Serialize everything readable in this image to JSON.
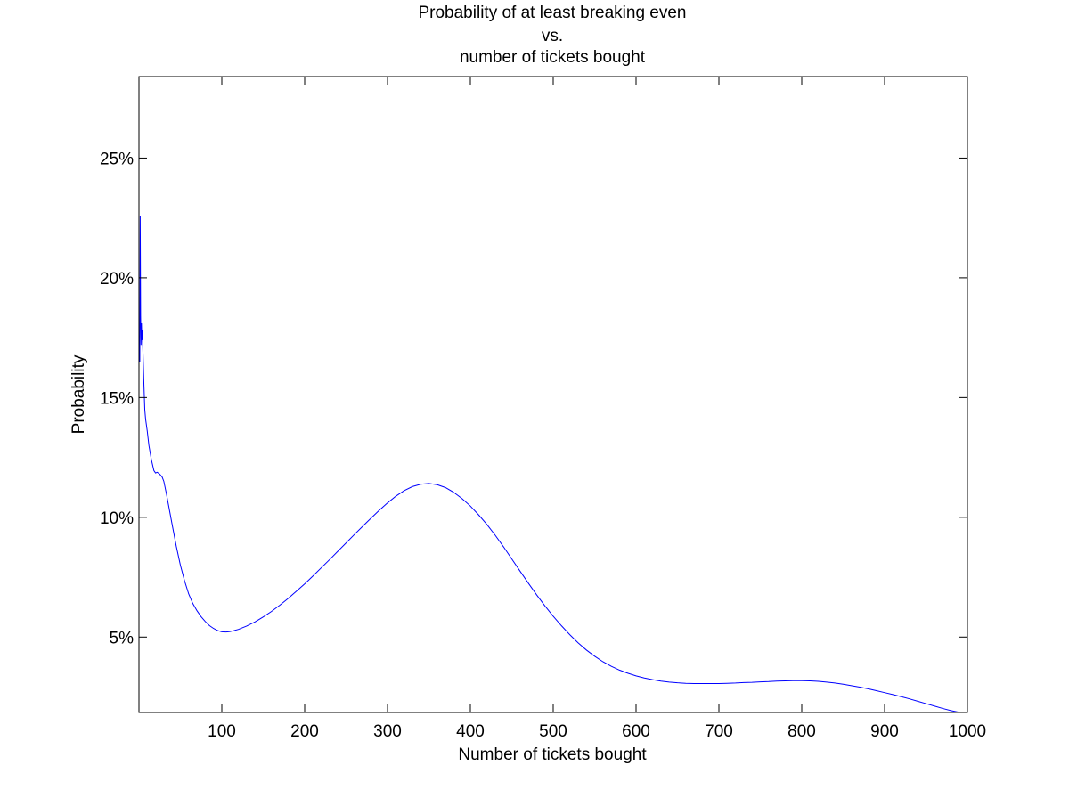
{
  "chart_data": {
    "type": "line",
    "title_lines": [
      "Probability of at least breaking even",
      "vs.",
      "number of tickets bought"
    ],
    "xlabel": "Number of tickets bought",
    "ylabel": "Probability",
    "xlim": [
      0,
      1000
    ],
    "ylim": [
      0.0185,
      0.284
    ],
    "xticks": [
      100,
      200,
      300,
      400,
      500,
      600,
      700,
      800,
      900,
      1000
    ],
    "xtick_labels": [
      "100",
      "200",
      "300",
      "400",
      "500",
      "600",
      "700",
      "800",
      "900",
      "1000"
    ],
    "yticks": [
      0.05,
      0.1,
      0.15,
      0.2,
      0.25
    ],
    "ytick_labels": [
      "5%",
      "10%",
      "15%",
      "20%",
      "25%"
    ],
    "grid": false,
    "line_color": "#0000ff",
    "series": [
      {
        "x": [
          1,
          1.5,
          2,
          2.5,
          3,
          3.5,
          4,
          5,
          6,
          7,
          8,
          10,
          12,
          15,
          18,
          20,
          22,
          25,
          28,
          30,
          33,
          36,
          40,
          45,
          50,
          55,
          60,
          65,
          70,
          75,
          80,
          85,
          90,
          95,
          100,
          105,
          110,
          115,
          120,
          130,
          140,
          150,
          160,
          170,
          180,
          190,
          200,
          210,
          220,
          230,
          240,
          250,
          260,
          270,
          280,
          290,
          300,
          310,
          320,
          330,
          340,
          350,
          360,
          370,
          380,
          390,
          400,
          410,
          420,
          430,
          440,
          450,
          460,
          470,
          480,
          490,
          500,
          510,
          520,
          530,
          540,
          550,
          560,
          570,
          580,
          590,
          600,
          610,
          620,
          630,
          640,
          650,
          660,
          670,
          680,
          690,
          700,
          710,
          720,
          730,
          740,
          750,
          760,
          770,
          780,
          790,
          800,
          810,
          820,
          830,
          840,
          850,
          860,
          870,
          880,
          890,
          900,
          910,
          920,
          930,
          940,
          950,
          960,
          970,
          980,
          990,
          1000
        ],
        "y": [
          0.165,
          0.226,
          0.184,
          0.172,
          0.181,
          0.174,
          0.178,
          0.167,
          0.155,
          0.145,
          0.141,
          0.136,
          0.13,
          0.124,
          0.1195,
          0.1185,
          0.1188,
          0.118,
          0.1168,
          0.115,
          0.11,
          0.1045,
          0.097,
          0.088,
          0.08,
          0.0735,
          0.068,
          0.064,
          0.061,
          0.0585,
          0.0565,
          0.0548,
          0.0536,
          0.0527,
          0.0522,
          0.0521,
          0.0523,
          0.0527,
          0.0532,
          0.0546,
          0.0563,
          0.0584,
          0.0607,
          0.0633,
          0.0661,
          0.0691,
          0.0722,
          0.0755,
          0.0789,
          0.0823,
          0.0858,
          0.0893,
          0.0928,
          0.0962,
          0.0996,
          0.1029,
          0.106,
          0.1088,
          0.1111,
          0.1128,
          0.1138,
          0.1141,
          0.1136,
          0.1124,
          0.1104,
          0.1078,
          0.1047,
          0.101,
          0.097,
          0.0925,
          0.0877,
          0.0826,
          0.0775,
          0.0725,
          0.0676,
          0.063,
          0.0587,
          0.0547,
          0.051,
          0.0476,
          0.0446,
          0.042,
          0.0397,
          0.0378,
          0.0362,
          0.0349,
          0.0338,
          0.0329,
          0.0322,
          0.0316,
          0.0312,
          0.0309,
          0.0307,
          0.0306,
          0.0306,
          0.0306,
          0.0306,
          0.0307,
          0.0308,
          0.031,
          0.0311,
          0.0313,
          0.0314,
          0.0316,
          0.0317,
          0.0318,
          0.0318,
          0.0317,
          0.0315,
          0.0312,
          0.0308,
          0.0303,
          0.0297,
          0.0291,
          0.0284,
          0.0276,
          0.0268,
          0.026,
          0.0251,
          0.0242,
          0.0232,
          0.0222,
          0.0212,
          0.0202,
          0.0193,
          0.0186,
          0.0185
        ]
      }
    ]
  }
}
